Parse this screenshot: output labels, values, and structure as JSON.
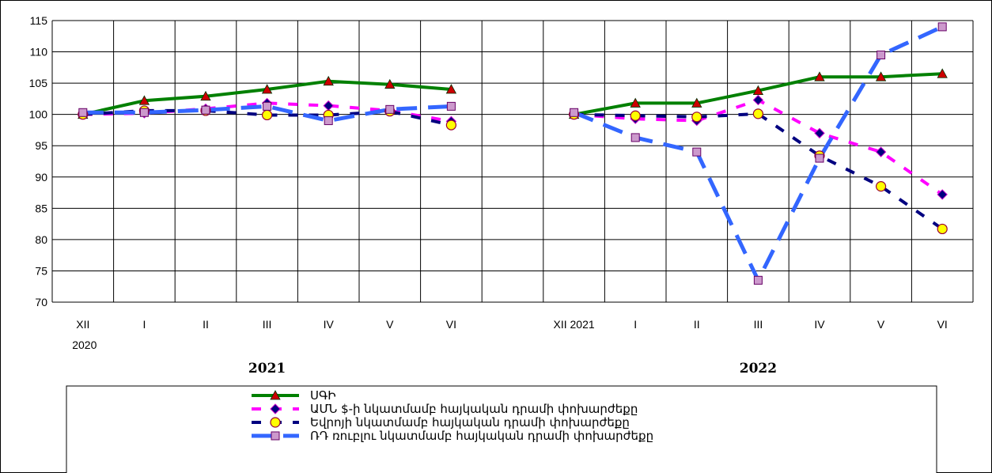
{
  "chart_data": {
    "type": "line",
    "title": "",
    "xlabel": "",
    "ylabel": "",
    "ylim": [
      70,
      115
    ],
    "yticks": [
      70,
      75,
      80,
      85,
      90,
      95,
      100,
      105,
      110,
      115
    ],
    "grid": true,
    "legend_position": "bottom",
    "groups": [
      {
        "year_label": "2021",
        "categories": [
          {
            "line1": "XII",
            "line2": "2020"
          },
          {
            "line1": "I",
            "line2": ""
          },
          {
            "line1": "II",
            "line2": ""
          },
          {
            "line1": "III",
            "line2": ""
          },
          {
            "line1": "IV",
            "line2": ""
          },
          {
            "line1": "V",
            "line2": ""
          },
          {
            "line1": "VI",
            "line2": ""
          }
        ]
      },
      {
        "year_label": "2022",
        "categories": [
          {
            "line1": "XII 2021",
            "line2": ""
          },
          {
            "line1": "I",
            "line2": ""
          },
          {
            "line1": "II",
            "line2": ""
          },
          {
            "line1": "III",
            "line2": ""
          },
          {
            "line1": "IV",
            "line2": ""
          },
          {
            "line1": "V",
            "line2": ""
          },
          {
            "line1": "VI",
            "line2": ""
          }
        ]
      }
    ],
    "series": [
      {
        "name": "ՍԳԻ",
        "color": "#008000",
        "marker": "triangle",
        "marker_color": "#cc0000",
        "dash": "solid",
        "values": [
          [
            100.0,
            102.2,
            102.9,
            104.0,
            105.3,
            104.8,
            104.0
          ],
          [
            100.0,
            101.8,
            101.8,
            103.8,
            106.0,
            106.0,
            106.5
          ]
        ]
      },
      {
        "name": "ԱՄՆ $-ի նկատմամբ հայկական դրամի փոխարժեքը",
        "color": "#ff00ff",
        "marker": "diamond",
        "marker_color": "#000080",
        "dash": "dash",
        "values": [
          [
            100.0,
            100.2,
            100.9,
            101.8,
            101.4,
            100.6,
            98.9
          ],
          [
            100.0,
            99.3,
            99.0,
            102.3,
            97.0,
            94.0,
            87.2
          ]
        ]
      },
      {
        "name": "Եվրոյի նկատմամբ հայկական դրամի փոխարժեքը",
        "color": "#000080",
        "marker": "circle",
        "marker_color": "#ffff00",
        "dash": "dash",
        "values": [
          [
            100.0,
            100.6,
            100.6,
            99.9,
            99.9,
            100.5,
            98.3
          ],
          [
            100.0,
            99.8,
            99.6,
            100.1,
            93.4,
            88.5,
            81.7
          ]
        ]
      },
      {
        "name": "ՌԴ ռուբլու նկատմամբ հայկական դրամի  փոխարժեքը",
        "color": "#3366ff",
        "marker": "square",
        "marker_color": "#cc99cc",
        "dash": "longdash",
        "values": [
          [
            100.3,
            100.3,
            100.7,
            101.3,
            99.0,
            100.8,
            101.3
          ],
          [
            100.3,
            96.3,
            94.0,
            73.5,
            93.0,
            109.5,
            114.0
          ]
        ]
      }
    ]
  }
}
